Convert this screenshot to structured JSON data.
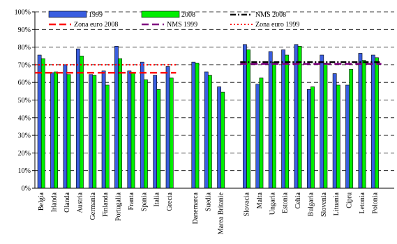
{
  "chart_data": {
    "type": "bar",
    "title": "",
    "xlabel": "",
    "ylabel": "",
    "ylim": [
      0,
      100
    ],
    "y_tick_labels": [
      "0%",
      "10%",
      "20%",
      "30%",
      "40%",
      "50%",
      "60%",
      "70%",
      "80%",
      "90%",
      "100%"
    ],
    "grid": "horizontal dashed",
    "legend_position": "top",
    "groups": [
      [
        "Belgia",
        "Irlanda",
        "Olanda",
        "Austria",
        "Germania",
        "Finlanda",
        "Portugalia",
        "Franta",
        "Spania",
        "Italia",
        "Grecia"
      ],
      [
        "Danemarca",
        "Suedia",
        "Marea Britanie"
      ],
      [
        "Slovacia",
        "Malta",
        "Ungaria",
        "Estonia",
        "Cehia",
        "Bulgaria",
        "Slovenia",
        "Lituania",
        "Cipru",
        "Letonia",
        "Polonia"
      ]
    ],
    "categories": [
      "Belgia",
      "Irlanda",
      "Olanda",
      "Austria",
      "Germania",
      "Finlanda",
      "Portugalia",
      "Franta",
      "Spania",
      "Italia",
      "Grecia",
      "Danemarca",
      "Suedia",
      "Marea Britanie",
      "Slovacia",
      "Malta",
      "Ungaria",
      "Estonia",
      "Cehia",
      "Bulgaria",
      "Slovenia",
      "Lituania",
      "Cipru",
      "Letonia",
      "Polonia"
    ],
    "series": [
      {
        "name": "1999",
        "color": "#3a5ee0",
        "values": [
          75.5,
          65.5,
          70,
          79,
          64.5,
          66.5,
          80.5,
          66.5,
          71.5,
          64,
          69,
          71.5,
          66,
          57.5,
          81.5,
          59,
          77.5,
          78.5,
          81.5,
          56,
          75.5,
          65,
          58.5,
          76.5,
          75.5
        ]
      },
      {
        "name": "2008",
        "color": "#00ee00",
        "values": [
          73.5,
          66,
          64.5,
          75,
          64,
          58.5,
          73.5,
          65.5,
          61.5,
          56,
          62.5,
          71,
          64,
          54.5,
          78.5,
          62.5,
          71.5,
          75.5,
          80.5,
          57.5,
          71,
          58.5,
          67.5,
          72.5,
          74
        ]
      }
    ],
    "reference_lines": [
      {
        "name": "Zona euro 2008",
        "value": 65.5,
        "group": 1,
        "color": "#ff0000",
        "style": "long-dash"
      },
      {
        "name": "Zona euro 1999",
        "value": 70,
        "group": 1,
        "color": "#ff0000",
        "style": "dotted"
      },
      {
        "name": "NMS 2008",
        "value": 71.5,
        "group": 3,
        "color": "#000000",
        "style": "dash-dot"
      },
      {
        "name": "NMS 1999",
        "value": 70.5,
        "group": 3,
        "color": "#800080",
        "style": "long-dash"
      }
    ],
    "legend": [
      {
        "label": "1999",
        "kind": "box",
        "color": "#3a5ee0"
      },
      {
        "label": "2008",
        "kind": "box",
        "color": "#00ee00"
      },
      {
        "label": "NMS 2008",
        "kind": "line",
        "color": "#000000",
        "style": "dash-dot"
      },
      {
        "label": "Zona euro 2008",
        "kind": "line",
        "color": "#ff0000",
        "style": "long-dash"
      },
      {
        "label": "NMS 1999",
        "kind": "line",
        "color": "#800080",
        "style": "long-dash"
      },
      {
        "label": "Zona euro 1999",
        "kind": "line",
        "color": "#ff0000",
        "style": "dotted"
      }
    ]
  }
}
